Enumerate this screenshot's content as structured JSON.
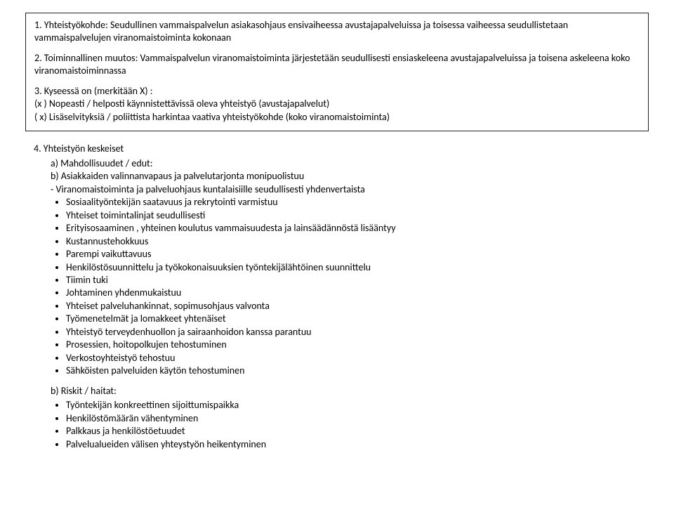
{
  "box": {
    "item1": "1. Yhteistyökohde: Seudullinen vammaispalvelun  asiakasohjaus  ensivaiheessa avustajapalveluissa ja toisessa vaiheessa seudullistetaan vammaispalvelujen viranomaistoiminta kokonaan",
    "item2": "2. Toiminnallinen muutos: Vammaispalvelun viranomaistoiminta järjestetään seudullisesti ensiaskeleena avustajapalveluissa  ja toisena askeleena koko viranomaistoiminnassa",
    "item3_lead": "3. Kyseessä on  (merkitään X) :",
    "item3_line1": "(x ) Nopeasti / helposti käynnistettävissä oleva yhteistyö (avustajapalvelut)",
    "item3_line2": "(  x) Lisäselvityksiä / poliittista harkintaa vaativa yhteistyökohde (koko viranomaistoiminta)"
  },
  "section4": {
    "lead": "4. Yhteistyön keskeiset",
    "a_label": "a)     Mahdollisuudet / edut:",
    "b_intro": "b)     Asiakkaiden valinnanvapaus ja palvelutarjonta monipuolistuu",
    "dash_line": "-      Viranomaistoiminta ja palveluohjaus  kuntalaisiille seudullisesti yhdenvertaista",
    "bullets_a": [
      "Sosiaalityöntekijän saatavuus ja rekrytointi varmistuu",
      "Yhteiset toimintalinjat seudullisesti",
      "Erityisosaaminen , yhteinen koulutus vammaisuudesta ja lainsäädännöstä lisääntyy",
      "Kustannustehokkuus",
      "Parempi vaikuttavuus",
      "Henkilöstösuunnittelu ja työkokonaisuuksien työntekijälähtöinen suunnittelu",
      "Tiimin tuki",
      "Johtaminen yhdenmukaistuu",
      "Yhteiset palveluhankinnat, sopimusohjaus valvonta",
      "Työmenetelmät ja lomakkeet yhtenäiset",
      "Yhteistyö terveydenhuollon ja sairaanhoidon kanssa parantuu",
      "Prosessien, hoitopolkujen tehostuminen",
      "Verkostoyhteistyö tehostuu",
      "Sähköisten palveluiden käytön tehostuminen"
    ],
    "b_label": "b)     Riskit / haitat:",
    "bullets_b": [
      "Työntekijän  konkreettinen sijoittumispaikka",
      "Henkilöstömäärän vähentyminen",
      "Palkkaus  ja henkilöstöetuudet",
      "Palvelualueiden välisen yhteystyön heikentyminen"
    ]
  }
}
